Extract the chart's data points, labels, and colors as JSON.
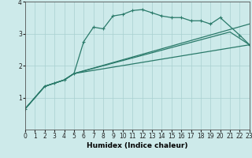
{
  "xlabel": "Humidex (Indice chaleur)",
  "xlim": [
    0,
    23
  ],
  "ylim": [
    0,
    4
  ],
  "yticks": [
    1,
    2,
    3,
    4
  ],
  "xticks": [
    0,
    1,
    2,
    3,
    4,
    5,
    6,
    7,
    8,
    9,
    10,
    11,
    12,
    13,
    14,
    15,
    16,
    17,
    18,
    19,
    20,
    21,
    22,
    23
  ],
  "bg_color": "#cdeaea",
  "line_color": "#2a7a6a",
  "grid_color": "#a8d0d0",
  "lines": [
    {
      "x": [
        0,
        2,
        3,
        4,
        5,
        6,
        7,
        8,
        9,
        10,
        11,
        12,
        13,
        14,
        15,
        16,
        17,
        18,
        19,
        20,
        22,
        23
      ],
      "y": [
        0.65,
        1.35,
        1.45,
        1.55,
        1.75,
        2.75,
        3.2,
        3.15,
        3.55,
        3.6,
        3.72,
        3.75,
        3.65,
        3.55,
        3.5,
        3.5,
        3.4,
        3.4,
        3.3,
        3.5,
        2.95,
        2.65
      ],
      "marker": "+"
    },
    {
      "x": [
        0,
        2,
        3,
        4,
        5,
        23
      ],
      "y": [
        0.65,
        1.35,
        1.45,
        1.55,
        1.75,
        3.3
      ],
      "marker": null
    },
    {
      "x": [
        0,
        2,
        3,
        4,
        5,
        21,
        23
      ],
      "y": [
        0.65,
        1.35,
        1.45,
        1.55,
        1.75,
        3.05,
        2.65
      ],
      "marker": null
    },
    {
      "x": [
        0,
        2,
        3,
        4,
        5,
        23
      ],
      "y": [
        0.65,
        1.35,
        1.45,
        1.55,
        1.75,
        2.65
      ],
      "marker": null
    }
  ]
}
